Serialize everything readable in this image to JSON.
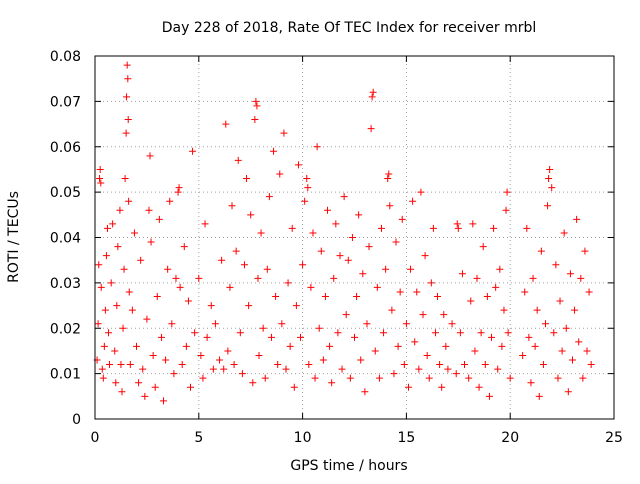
{
  "colors": {
    "series": "#ff0000",
    "grid": "#a0a0a0",
    "axis": "#000000"
  },
  "chart_data": {
    "type": "scatter",
    "title": "Day 228 of 2018, Rate Of TEC Index for receiver mrbl",
    "xlabel": "GPS time / hours",
    "ylabel": "ROTI / TECUs",
    "xlim": [
      0,
      25
    ],
    "ylim": [
      0,
      0.08
    ],
    "x_ticks": [
      "0",
      "5",
      "10",
      "15",
      "20",
      "25"
    ],
    "y_ticks": [
      "0",
      "0.01",
      "0.02",
      "0.03",
      "0.04",
      "0.05",
      "0.06",
      "0.07",
      "0.08"
    ],
    "grid": true,
    "marker": "plus",
    "series": [
      {
        "points": [
          [
            0.1,
            0.013
          ],
          [
            0.15,
            0.021
          ],
          [
            0.18,
            0.034
          ],
          [
            0.22,
            0.053
          ],
          [
            0.25,
            0.055
          ],
          [
            0.28,
            0.052
          ],
          [
            0.3,
            0.029
          ],
          [
            0.35,
            0.011
          ],
          [
            0.4,
            0.009
          ],
          [
            0.45,
            0.016
          ],
          [
            0.5,
            0.024
          ],
          [
            0.55,
            0.036
          ],
          [
            0.6,
            0.042
          ],
          [
            0.65,
            0.019
          ],
          [
            0.7,
            0.012
          ],
          [
            0.78,
            0.03
          ],
          [
            0.85,
            0.043
          ],
          [
            0.95,
            0.015
          ],
          [
            1.0,
            0.008
          ],
          [
            1.05,
            0.025
          ],
          [
            1.1,
            0.038
          ],
          [
            1.2,
            0.046
          ],
          [
            1.25,
            0.012
          ],
          [
            1.3,
            0.006
          ],
          [
            1.35,
            0.02
          ],
          [
            1.4,
            0.033
          ],
          [
            1.45,
            0.053
          ],
          [
            1.5,
            0.063
          ],
          [
            1.52,
            0.071
          ],
          [
            1.55,
            0.078
          ],
          [
            1.58,
            0.075
          ],
          [
            1.6,
            0.066
          ],
          [
            1.62,
            0.048
          ],
          [
            1.65,
            0.028
          ],
          [
            1.7,
            0.012
          ],
          [
            1.8,
            0.024
          ],
          [
            1.9,
            0.041
          ],
          [
            2.0,
            0.016
          ],
          [
            2.1,
            0.008
          ],
          [
            2.2,
            0.035
          ],
          [
            2.3,
            0.011
          ],
          [
            2.4,
            0.005
          ],
          [
            2.5,
            0.022
          ],
          [
            2.6,
            0.046
          ],
          [
            2.65,
            0.058
          ],
          [
            2.7,
            0.039
          ],
          [
            2.8,
            0.014
          ],
          [
            2.9,
            0.007
          ],
          [
            3.0,
            0.027
          ],
          [
            3.1,
            0.044
          ],
          [
            3.2,
            0.018
          ],
          [
            3.3,
            0.004
          ],
          [
            3.4,
            0.013
          ],
          [
            3.5,
            0.033
          ],
          [
            3.6,
            0.048
          ],
          [
            3.7,
            0.021
          ],
          [
            3.8,
            0.01
          ],
          [
            3.9,
            0.031
          ],
          [
            4.0,
            0.05
          ],
          [
            4.05,
            0.051
          ],
          [
            4.1,
            0.029
          ],
          [
            4.2,
            0.012
          ],
          [
            4.3,
            0.038
          ],
          [
            4.4,
            0.016
          ],
          [
            4.5,
            0.026
          ],
          [
            4.6,
            0.007
          ],
          [
            4.7,
            0.059
          ],
          [
            4.8,
            0.019
          ],
          [
            5.0,
            0.031
          ],
          [
            5.1,
            0.014
          ],
          [
            5.2,
            0.009
          ],
          [
            5.3,
            0.043
          ],
          [
            5.4,
            0.018
          ],
          [
            5.6,
            0.025
          ],
          [
            5.7,
            0.011
          ],
          [
            5.8,
            0.021
          ],
          [
            6.0,
            0.013
          ],
          [
            6.1,
            0.035
          ],
          [
            6.2,
            0.011
          ],
          [
            6.3,
            0.065
          ],
          [
            6.4,
            0.015
          ],
          [
            6.5,
            0.029
          ],
          [
            6.6,
            0.047
          ],
          [
            6.7,
            0.012
          ],
          [
            6.8,
            0.037
          ],
          [
            6.9,
            0.057
          ],
          [
            7.0,
            0.019
          ],
          [
            7.1,
            0.01
          ],
          [
            7.2,
            0.034
          ],
          [
            7.3,
            0.053
          ],
          [
            7.4,
            0.025
          ],
          [
            7.5,
            0.045
          ],
          [
            7.6,
            0.008
          ],
          [
            7.7,
            0.066
          ],
          [
            7.75,
            0.07
          ],
          [
            7.8,
            0.069
          ],
          [
            7.85,
            0.031
          ],
          [
            7.9,
            0.014
          ],
          [
            8.0,
            0.041
          ],
          [
            8.1,
            0.02
          ],
          [
            8.2,
            0.009
          ],
          [
            8.3,
            0.033
          ],
          [
            8.4,
            0.049
          ],
          [
            8.5,
            0.018
          ],
          [
            8.6,
            0.059
          ],
          [
            8.7,
            0.027
          ],
          [
            8.8,
            0.012
          ],
          [
            8.9,
            0.054
          ],
          [
            9.0,
            0.021
          ],
          [
            9.1,
            0.063
          ],
          [
            9.2,
            0.011
          ],
          [
            9.3,
            0.03
          ],
          [
            9.4,
            0.016
          ],
          [
            9.5,
            0.042
          ],
          [
            9.6,
            0.007
          ],
          [
            9.7,
            0.025
          ],
          [
            9.8,
            0.056
          ],
          [
            9.9,
            0.018
          ],
          [
            10.0,
            0.034
          ],
          [
            10.1,
            0.048
          ],
          [
            10.2,
            0.053
          ],
          [
            10.25,
            0.051
          ],
          [
            10.3,
            0.012
          ],
          [
            10.4,
            0.029
          ],
          [
            10.5,
            0.041
          ],
          [
            10.6,
            0.009
          ],
          [
            10.7,
            0.06
          ],
          [
            10.8,
            0.02
          ],
          [
            10.9,
            0.037
          ],
          [
            11.0,
            0.013
          ],
          [
            11.1,
            0.027
          ],
          [
            11.2,
            0.046
          ],
          [
            11.3,
            0.016
          ],
          [
            11.4,
            0.008
          ],
          [
            11.5,
            0.031
          ],
          [
            11.6,
            0.043
          ],
          [
            11.7,
            0.019
          ],
          [
            11.8,
            0.036
          ],
          [
            11.9,
            0.011
          ],
          [
            12.0,
            0.049
          ],
          [
            12.1,
            0.023
          ],
          [
            12.2,
            0.035
          ],
          [
            12.3,
            0.009
          ],
          [
            12.4,
            0.04
          ],
          [
            12.5,
            0.018
          ],
          [
            12.6,
            0.027
          ],
          [
            12.7,
            0.045
          ],
          [
            12.8,
            0.013
          ],
          [
            12.9,
            0.032
          ],
          [
            13.0,
            0.006
          ],
          [
            13.1,
            0.021
          ],
          [
            13.2,
            0.038
          ],
          [
            13.3,
            0.064
          ],
          [
            13.35,
            0.071
          ],
          [
            13.4,
            0.072
          ],
          [
            13.5,
            0.015
          ],
          [
            13.6,
            0.029
          ],
          [
            13.7,
            0.009
          ],
          [
            13.8,
            0.042
          ],
          [
            13.9,
            0.019
          ],
          [
            14.0,
            0.033
          ],
          [
            14.1,
            0.053
          ],
          [
            14.15,
            0.054
          ],
          [
            14.2,
            0.047
          ],
          [
            14.3,
            0.024
          ],
          [
            14.4,
            0.01
          ],
          [
            14.5,
            0.039
          ],
          [
            14.6,
            0.016
          ],
          [
            14.7,
            0.028
          ],
          [
            14.8,
            0.044
          ],
          [
            14.9,
            0.012
          ],
          [
            15.0,
            0.021
          ],
          [
            15.1,
            0.007
          ],
          [
            15.2,
            0.033
          ],
          [
            15.3,
            0.048
          ],
          [
            15.4,
            0.017
          ],
          [
            15.5,
            0.028
          ],
          [
            15.6,
            0.011
          ],
          [
            15.7,
            0.05
          ],
          [
            15.8,
            0.023
          ],
          [
            15.9,
            0.036
          ],
          [
            16.0,
            0.014
          ],
          [
            16.1,
            0.009
          ],
          [
            16.2,
            0.03
          ],
          [
            16.3,
            0.042
          ],
          [
            16.4,
            0.019
          ],
          [
            16.5,
            0.027
          ],
          [
            16.6,
            0.012
          ],
          [
            16.7,
            0.007
          ],
          [
            16.8,
            0.023
          ],
          [
            16.9,
            0.016
          ],
          [
            17.0,
            0.011
          ],
          [
            17.2,
            0.021
          ],
          [
            17.4,
            0.01
          ],
          [
            17.45,
            0.043
          ],
          [
            17.5,
            0.042
          ],
          [
            17.6,
            0.019
          ],
          [
            17.7,
            0.032
          ],
          [
            17.8,
            0.012
          ],
          [
            18.0,
            0.009
          ],
          [
            18.1,
            0.026
          ],
          [
            18.2,
            0.043
          ],
          [
            18.3,
            0.015
          ],
          [
            18.4,
            0.031
          ],
          [
            18.5,
            0.007
          ],
          [
            18.6,
            0.019
          ],
          [
            18.7,
            0.038
          ],
          [
            18.8,
            0.012
          ],
          [
            18.9,
            0.027
          ],
          [
            19.0,
            0.005
          ],
          [
            19.1,
            0.018
          ],
          [
            19.2,
            0.042
          ],
          [
            19.3,
            0.029
          ],
          [
            19.4,
            0.011
          ],
          [
            19.5,
            0.033
          ],
          [
            19.6,
            0.016
          ],
          [
            19.7,
            0.024
          ],
          [
            19.8,
            0.046
          ],
          [
            19.85,
            0.05
          ],
          [
            19.9,
            0.019
          ],
          [
            20.0,
            0.009
          ],
          [
            20.6,
            0.014
          ],
          [
            20.7,
            0.028
          ],
          [
            20.8,
            0.042
          ],
          [
            20.9,
            0.018
          ],
          [
            21.0,
            0.008
          ],
          [
            21.1,
            0.031
          ],
          [
            21.2,
            0.016
          ],
          [
            21.3,
            0.024
          ],
          [
            21.4,
            0.005
          ],
          [
            21.5,
            0.037
          ],
          [
            21.6,
            0.012
          ],
          [
            21.7,
            0.021
          ],
          [
            21.8,
            0.047
          ],
          [
            21.85,
            0.053
          ],
          [
            21.9,
            0.055
          ],
          [
            22.0,
            0.051
          ],
          [
            22.1,
            0.019
          ],
          [
            22.2,
            0.034
          ],
          [
            22.3,
            0.009
          ],
          [
            22.4,
            0.026
          ],
          [
            22.5,
            0.015
          ],
          [
            22.6,
            0.041
          ],
          [
            22.7,
            0.02
          ],
          [
            22.8,
            0.006
          ],
          [
            22.9,
            0.032
          ],
          [
            23.0,
            0.013
          ],
          [
            23.1,
            0.024
          ],
          [
            23.2,
            0.044
          ],
          [
            23.3,
            0.017
          ],
          [
            23.4,
            0.031
          ],
          [
            23.5,
            0.009
          ],
          [
            23.6,
            0.037
          ],
          [
            23.7,
            0.015
          ],
          [
            23.8,
            0.028
          ],
          [
            23.9,
            0.012
          ]
        ]
      }
    ]
  }
}
